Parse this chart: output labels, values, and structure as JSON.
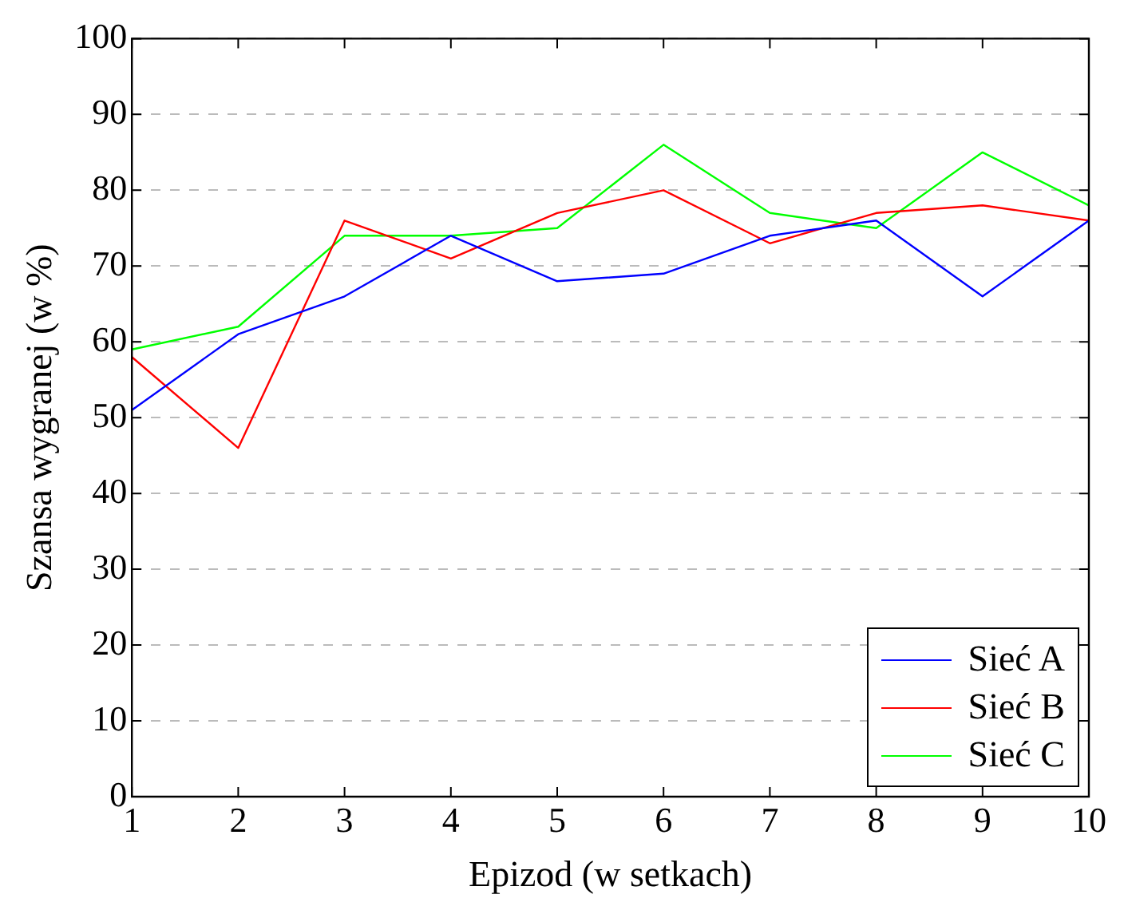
{
  "chart_data": {
    "type": "line",
    "xlabel": "Epizod (w setkach)",
    "ylabel": "Szansa wygranej (w %)",
    "x": [
      1,
      2,
      3,
      4,
      5,
      6,
      7,
      8,
      9,
      10
    ],
    "series": [
      {
        "name": "Sieć A",
        "color": "#0000ff",
        "values": [
          51,
          61,
          66,
          74,
          68,
          69,
          74,
          76,
          66,
          76
        ]
      },
      {
        "name": "Sieć B",
        "color": "#ff0000",
        "values": [
          58,
          46,
          76,
          71,
          77,
          80,
          73,
          77,
          78,
          76
        ]
      },
      {
        "name": "Sieć C",
        "color": "#00ff00",
        "values": [
          59,
          62,
          74,
          74,
          75,
          86,
          77,
          75,
          85,
          78
        ]
      }
    ],
    "xlim": [
      1,
      10
    ],
    "xticks": [
      1,
      2,
      3,
      4,
      5,
      6,
      7,
      8,
      9,
      10
    ],
    "ylim": [
      0,
      100
    ],
    "yticks": [
      0,
      10,
      20,
      30,
      40,
      50,
      60,
      70,
      80,
      90,
      100
    ],
    "grid": "y",
    "legend": "bottom right",
    "marker": "none",
    "line_style": "solid"
  }
}
